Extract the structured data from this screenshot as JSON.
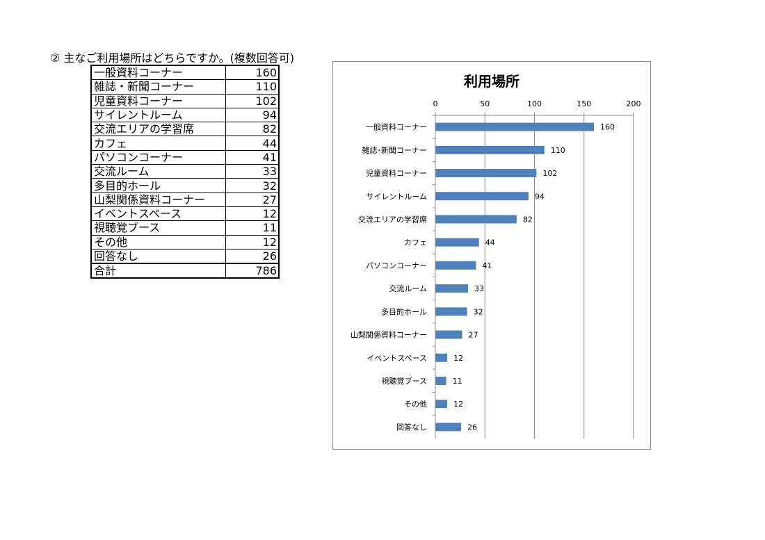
{
  "heading": "② 主なご利用場所はどちらですか。(複数回答可)",
  "table": {
    "rows": [
      {
        "label": "一般資料コーナー",
        "value": 160
      },
      {
        "label": "雑誌・新聞コーナー",
        "value": 110
      },
      {
        "label": "児童資料コーナー",
        "value": 102
      },
      {
        "label": "サイレントルーム",
        "value": 94
      },
      {
        "label": "交流エリアの学習席",
        "value": 82
      },
      {
        "label": "カフェ",
        "value": 44
      },
      {
        "label": "パソコンコーナー",
        "value": 41
      },
      {
        "label": "交流ルーム",
        "value": 33
      },
      {
        "label": "多目的ホール",
        "value": 32
      },
      {
        "label": "山梨関係資料コーナー",
        "value": 27
      },
      {
        "label": "イベントスペース",
        "value": 12
      },
      {
        "label": "視聴覚ブース",
        "value": 11
      },
      {
        "label": "その他",
        "value": 12
      },
      {
        "label": "回答なし",
        "value": 26
      }
    ],
    "total": {
      "label": "合計",
      "value": 786
    }
  },
  "chart_data": {
    "type": "bar",
    "orientation": "horizontal",
    "title": "利用場所",
    "categories": [
      "一般資料コーナー",
      "雑誌･新聞コーナー",
      "児童資料コーナー",
      "サイレントルーム",
      "交流エリアの学習席",
      "カフェ",
      "パソコンコーナー",
      "交流ルーム",
      "多目的ホール",
      "山梨関係資料コーナー",
      "イベントスペース",
      "視聴覚ブース",
      "その他",
      "回答なし"
    ],
    "values": [
      160,
      110,
      102,
      94,
      82,
      44,
      41,
      33,
      32,
      27,
      12,
      11,
      12,
      26
    ],
    "xticks": [
      0,
      50,
      100,
      150,
      200
    ],
    "xlim": [
      0,
      200
    ],
    "axis_position": "top",
    "grid": true,
    "legend": false,
    "bar_color": "#4f81bd",
    "data_labels": true
  }
}
